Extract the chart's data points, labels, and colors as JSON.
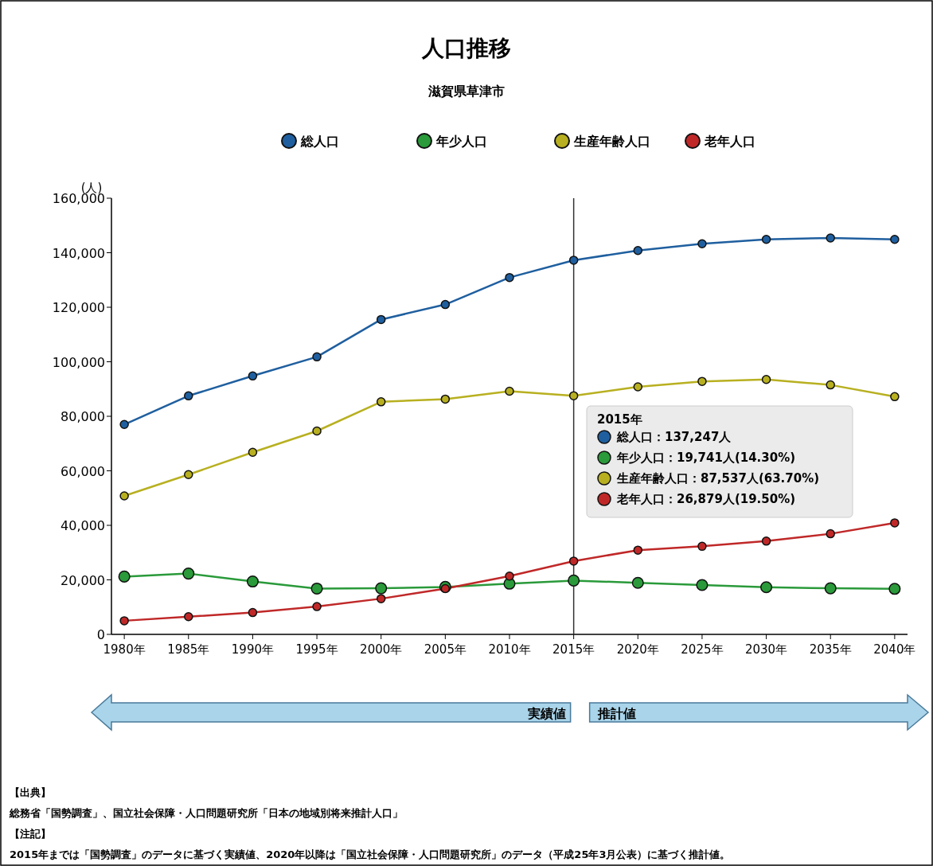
{
  "chart_data": {
    "type": "line",
    "title": "人口推移",
    "subtitle": "滋賀県草津市",
    "ylabel": "(人)",
    "categories": [
      "1980年",
      "1985年",
      "1990年",
      "1995年",
      "2000年",
      "2005年",
      "2010年",
      "2015年",
      "2020年",
      "2025年",
      "2030年",
      "2035年",
      "2040年"
    ],
    "series": [
      {
        "name": "総人口",
        "color": "#1f5f9f",
        "values": [
          77000,
          87500,
          94800,
          101800,
          115500,
          121000,
          130900,
          137247,
          140800,
          143300,
          144900,
          145400,
          144900
        ]
      },
      {
        "name": "年少人口",
        "color": "#2a9a3a",
        "values": [
          21200,
          22300,
          19400,
          16800,
          16900,
          17400,
          18600,
          19741,
          18900,
          18100,
          17300,
          16900,
          16700
        ]
      },
      {
        "name": "生産年齢人口",
        "color": "#b8b020",
        "values": [
          50800,
          58600,
          66800,
          74600,
          85300,
          86300,
          89200,
          87537,
          90800,
          92800,
          93500,
          91500,
          87200
        ]
      },
      {
        "name": "老年人口",
        "color": "#c02828",
        "values": [
          5000,
          6500,
          8000,
          10200,
          13100,
          16800,
          21400,
          26879,
          30900,
          32300,
          34200,
          36900,
          40900
        ]
      }
    ],
    "ylim": [
      0,
      160000
    ],
    "yticks": [
      {
        "value": 0,
        "label": "0"
      },
      {
        "value": 20000,
        "label": "20,000"
      },
      {
        "value": 40000,
        "label": "40,000"
      },
      {
        "value": 60000,
        "label": "60,000"
      },
      {
        "value": 80000,
        "label": "80,000"
      },
      {
        "value": 100000,
        "label": "100,000"
      },
      {
        "value": 120000,
        "label": "120,000"
      },
      {
        "value": 140000,
        "label": "140,000"
      },
      {
        "value": 160000,
        "label": "160,000"
      }
    ],
    "ref_lines": [
      {
        "axis": "x",
        "value": "2015年",
        "color": "#333333"
      }
    ],
    "legend": "top",
    "marker": "circle",
    "line_style": "solid",
    "grid": false,
    "annotations": [
      "2015年",
      "総人口：137,247人",
      "年少人口：19,741人(14.30%)",
      "生産年齢人口：87,537人(63.70%)",
      "老年人口：26,879人(19.50%)",
      "実績値",
      "推計値",
      "【出典】",
      "総務省「国勢調査」、国立社会保障・人口問題研究所「日本の地域別将来推計人口」",
      "【注記】",
      "2015年までは「国勢調査」のデータに基づく実績値、2020年以降は「国立社会保障・人口問題研究所」のデータ（平成25年3月公表）に基づく推計値。"
    ]
  }
}
